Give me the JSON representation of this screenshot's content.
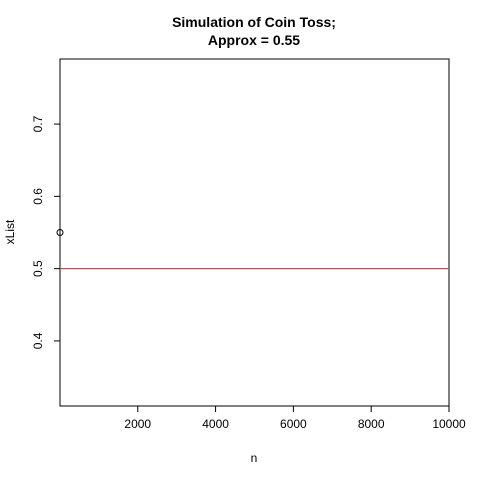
{
  "chart_data": {
    "type": "scatter",
    "title_line1": "Simulation of Coin Toss;",
    "title_line2": "Approx =  0.55",
    "xlabel": "n",
    "ylabel": "xList",
    "xlim": [
      1,
      10000
    ],
    "ylim": [
      0.31,
      0.79
    ],
    "x_ticks": [
      2000,
      4000,
      6000,
      8000,
      10000
    ],
    "x_tick_labels": [
      "2000",
      "4000",
      "6000",
      "8000",
      "10000"
    ],
    "y_ticks": [
      0.4,
      0.5,
      0.6,
      0.7
    ],
    "y_tick_labels": [
      "0.4",
      "0.5",
      "0.6",
      "0.7"
    ],
    "points": [
      {
        "x": 1,
        "y": 0.55
      }
    ],
    "reference_line": {
      "y": 0.5,
      "color": "#c0504d"
    },
    "point_color": "#000000"
  }
}
